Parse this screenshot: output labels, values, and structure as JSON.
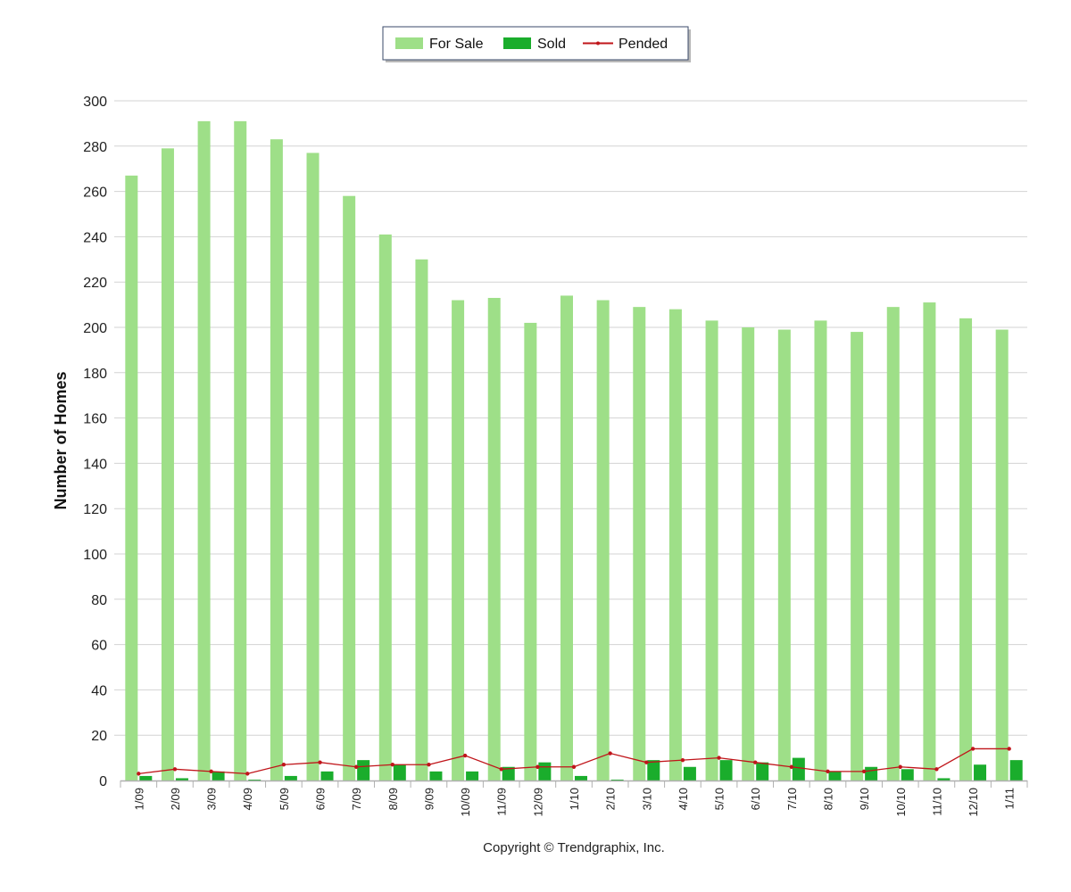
{
  "chart_data": {
    "type": "bar",
    "title": "",
    "ylabel": "Number of Homes",
    "xlabel": "",
    "ylim": [
      0,
      300
    ],
    "yticks": [
      0,
      20,
      40,
      60,
      80,
      100,
      120,
      140,
      160,
      180,
      200,
      220,
      240,
      260,
      280,
      300
    ],
    "grid": true,
    "legend_position": "top-center",
    "categories": [
      "1/09",
      "2/09",
      "3/09",
      "4/09",
      "5/09",
      "6/09",
      "7/09",
      "8/09",
      "9/09",
      "10/09",
      "11/09",
      "12/09",
      "1/10",
      "2/10",
      "3/10",
      "4/10",
      "5/10",
      "6/10",
      "7/10",
      "8/10",
      "9/10",
      "10/10",
      "11/10",
      "12/10",
      "1/11"
    ],
    "series": [
      {
        "name": "For Sale",
        "kind": "bar",
        "color": "#9edf88",
        "values": [
          267,
          279,
          291,
          291,
          283,
          277,
          258,
          241,
          230,
          212,
          213,
          202,
          214,
          212,
          209,
          208,
          203,
          200,
          199,
          203,
          198,
          209,
          211,
          204,
          199
        ]
      },
      {
        "name": "Sold",
        "kind": "bar",
        "color": "#1aad2c",
        "values": [
          2,
          1,
          4,
          0,
          2,
          4,
          9,
          7,
          4,
          4,
          6,
          8,
          2,
          0,
          9,
          6,
          9,
          8,
          10,
          4,
          6,
          5,
          1,
          7,
          9
        ]
      },
      {
        "name": "Pended",
        "kind": "line",
        "color": "#c0151a",
        "values": [
          3,
          5,
          4,
          3,
          7,
          8,
          6,
          7,
          7,
          11,
          5,
          6,
          6,
          12,
          8,
          9,
          10,
          8,
          6,
          4,
          4,
          6,
          5,
          14,
          14
        ]
      }
    ]
  },
  "footer": {
    "copyright": "Copyright © Trendgraphix, Inc."
  }
}
